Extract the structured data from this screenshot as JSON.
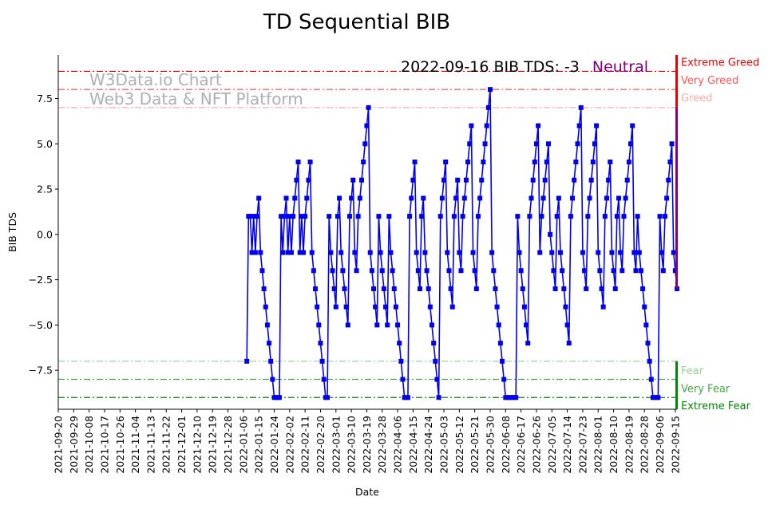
{
  "chart_data": {
    "type": "line",
    "title": "TD Sequential BIB",
    "xlabel": "Date",
    "ylabel": "BIB TDS",
    "ylim": [
      -9.65,
      9.9
    ],
    "yticks": [
      -7.5,
      -5.0,
      -2.5,
      0.0,
      2.5,
      5.0,
      7.5
    ],
    "ytick_labels": [
      "−7.5",
      "−5.0",
      "−2.5",
      "0.0",
      "2.5",
      "5.0",
      "7.5"
    ],
    "x_start": "2021-09-20",
    "x_end": "2022-09-16",
    "xtick_labels": [
      "2021-09-20",
      "2021-09-29",
      "2021-10-08",
      "2021-10-17",
      "2021-10-26",
      "2021-11-04",
      "2021-11-13",
      "2021-11-22",
      "2021-12-01",
      "2021-12-10",
      "2021-12-19",
      "2021-12-28",
      "2022-01-06",
      "2022-01-15",
      "2022-01-24",
      "2022-02-02",
      "2022-02-11",
      "2022-02-20",
      "2022-03-01",
      "2022-03-10",
      "2022-03-19",
      "2022-03-28",
      "2022-04-06",
      "2022-04-15",
      "2022-04-24",
      "2022-05-03",
      "2022-05-12",
      "2022-05-21",
      "2022-05-30",
      "2022-06-08",
      "2022-06-17",
      "2022-06-26",
      "2022-07-05",
      "2022-07-14",
      "2022-07-23",
      "2022-08-01",
      "2022-08-10",
      "2022-08-19",
      "2022-08-28",
      "2022-09-06",
      "2022-09-15"
    ],
    "series": [
      {
        "marker": "square",
        "color": "#0000ee",
        "values": [
          -7,
          1,
          1,
          -1,
          1,
          -1,
          1,
          2,
          -1,
          -2,
          -3,
          -4,
          -5,
          -6,
          -7,
          -8,
          -9,
          -9,
          -9,
          -9,
          1,
          -1,
          1,
          2,
          -1,
          1,
          -1,
          1,
          2,
          3,
          4,
          -1,
          1,
          -1,
          1,
          2,
          3,
          4,
          -1,
          -2,
          -3,
          -4,
          -5,
          -6,
          -7,
          -8,
          -9,
          -9,
          1,
          -1,
          -2,
          -3,
          -4,
          1,
          2,
          -1,
          -2,
          -3,
          -4,
          -5,
          1,
          2,
          3,
          -1,
          -2,
          1,
          2,
          3,
          4,
          5,
          6,
          7,
          -1,
          -2,
          -3,
          -4,
          -5,
          1,
          -1,
          -2,
          -3,
          -4,
          -5,
          1,
          -1,
          -2,
          -3,
          -4,
          -5,
          -6,
          -7,
          -8,
          -9,
          -9,
          -9,
          1,
          2,
          3,
          4,
          -1,
          -2,
          -3,
          1,
          2,
          -1,
          -2,
          -3,
          -4,
          -5,
          -6,
          -7,
          -8,
          -9,
          1,
          2,
          3,
          4,
          -1,
          -2,
          -3,
          -4,
          1,
          2,
          3,
          -1,
          -2,
          1,
          2,
          3,
          4,
          5,
          6,
          -1,
          -2,
          -3,
          1,
          2,
          3,
          4,
          5,
          6,
          7,
          8,
          -1,
          -2,
          -3,
          -4,
          -5,
          -6,
          -7,
          -8,
          -9,
          -9,
          -9,
          -9,
          -9,
          -9,
          -9,
          1,
          -1,
          -2,
          -3,
          -4,
          -5,
          -6,
          1,
          2,
          3,
          4,
          5,
          6,
          -1,
          1,
          2,
          3,
          4,
          5,
          0,
          -1,
          -2,
          -3,
          1,
          2,
          -1,
          -2,
          -3,
          -4,
          -5,
          -6,
          1,
          2,
          3,
          4,
          5,
          6,
          7,
          -1,
          -2,
          -3,
          1,
          2,
          3,
          4,
          5,
          6,
          -1,
          -2,
          -3,
          -4,
          1,
          2,
          3,
          4,
          -1,
          -2,
          -3,
          1,
          2,
          -1,
          -2,
          1,
          2,
          3,
          4,
          5,
          6,
          -1,
          -2,
          1,
          -1,
          -2,
          -3,
          -4,
          -5,
          -6,
          -7,
          -8,
          -9,
          -9,
          -9,
          -9,
          1,
          -1,
          -2,
          1,
          2,
          3,
          4,
          5,
          -1,
          -2,
          -3
        ]
      }
    ],
    "reference_lines": [
      {
        "value": 9,
        "label": "Extreme Greed",
        "color": "#ee0000"
      },
      {
        "value": 8,
        "label": "Very Greed",
        "color": "#ff5555"
      },
      {
        "value": 7,
        "label": "Greed",
        "color": "#ffaaaa"
      },
      {
        "value": -7,
        "label": "Fear",
        "color": "#99cc99"
      },
      {
        "value": -8,
        "label": "Very Fear",
        "color": "#44aa44"
      },
      {
        "value": -9,
        "label": "Extreme Fear",
        "color": "#008800"
      }
    ],
    "side_bar": [
      {
        "from": 7,
        "to": 9.9,
        "color": "#ee0000"
      },
      {
        "from": -3,
        "to": 7,
        "color": "#800080"
      },
      {
        "from": -9.65,
        "to": -7,
        "color": "#008800"
      }
    ],
    "annotation": {
      "text": "2022-09-16 BIB TDS: -3",
      "status": "Neutral",
      "status_color": "#800080"
    },
    "watermark": [
      "W3Data.io Chart",
      "Web3 Data & NFT Platform"
    ],
    "grid": false,
    "legend": "none"
  }
}
